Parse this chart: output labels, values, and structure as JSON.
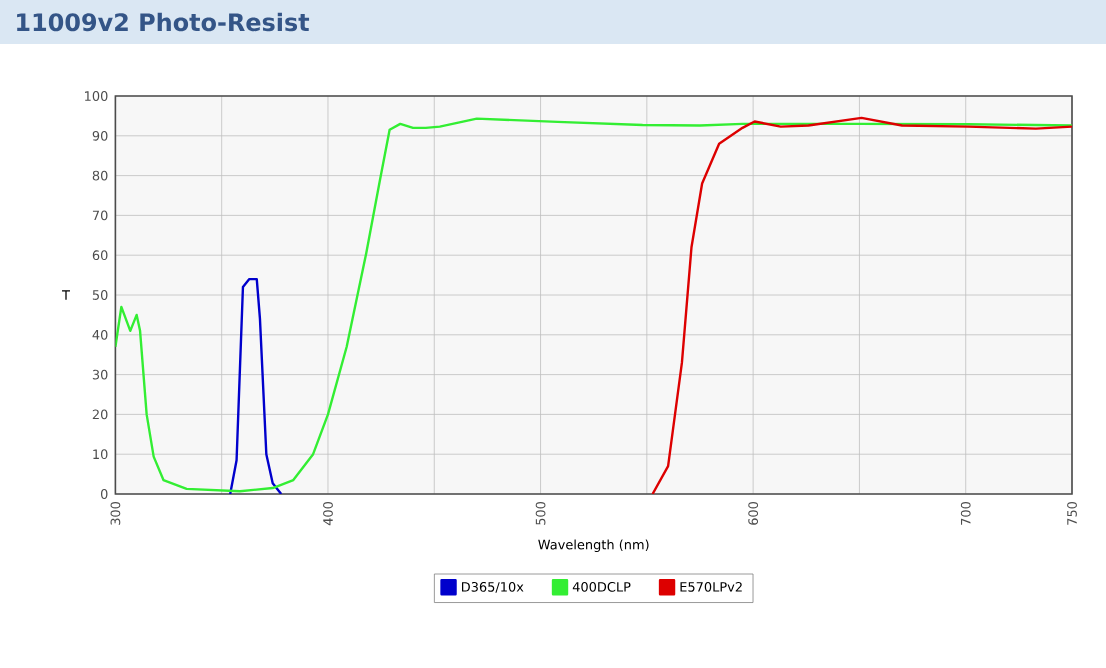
{
  "chart_data": {
    "type": "line",
    "title": "11009v2 Photo-Resist",
    "xlabel": "Wavelength (nm)",
    "ylabel": "T",
    "xlim": [
      300,
      750
    ],
    "ylim": [
      0,
      100
    ],
    "xticks": [
      300,
      {
        "value": 350,
        "label": null
      },
      400,
      {
        "value": 450,
        "label": null
      },
      500,
      {
        "value": 550,
        "label": null
      },
      600,
      {
        "value": 650,
        "label": null
      },
      700,
      750
    ],
    "yticks": [
      0,
      10,
      20,
      30,
      40,
      50,
      60,
      70,
      80,
      90,
      100
    ],
    "grid": true,
    "legend": "bottom",
    "marker": "none",
    "line_style": "solid",
    "series": [
      {
        "name": "D365/10x",
        "color": "#0000cc",
        "x": [
          354,
          357,
          360,
          363,
          366.5,
          368,
          371,
          374,
          378
        ],
        "values": [
          0,
          8.5,
          52,
          54,
          54,
          44,
          10,
          2.7,
          0
        ]
      },
      {
        "name": "400DCLP",
        "color": "#33ee33",
        "x": [
          300,
          302.8,
          307,
          310,
          311.6,
          314.7,
          318,
          322.6,
          333.5,
          358.6,
          374,
          383.7,
          393,
          400,
          408.8,
          418,
          424.5,
          429,
          434,
          440,
          446,
          452.6,
          470,
          508,
          548,
          575,
          595,
          650,
          701,
          750
        ],
        "values": [
          37,
          47,
          41,
          45,
          41,
          20,
          9.4,
          3.5,
          1.3,
          0.7,
          1.5,
          3.5,
          10,
          20,
          37,
          60.5,
          79,
          91.5,
          93,
          92,
          92,
          92.3,
          94.3,
          93.5,
          92.7,
          92.6,
          93,
          93,
          92.9,
          92.6
        ]
      },
      {
        "name": "E570LPv2",
        "color": "#dd0000",
        "x": [
          552.7,
          560,
          566.5,
          571,
          576,
          584,
          595,
          600.7,
          613,
          626,
          651,
          670,
          701,
          733,
          750
        ],
        "values": [
          0,
          7,
          33,
          62,
          78,
          88,
          92,
          93.6,
          92.3,
          92.6,
          94.5,
          92.6,
          92.3,
          91.8,
          92.3
        ]
      }
    ]
  }
}
